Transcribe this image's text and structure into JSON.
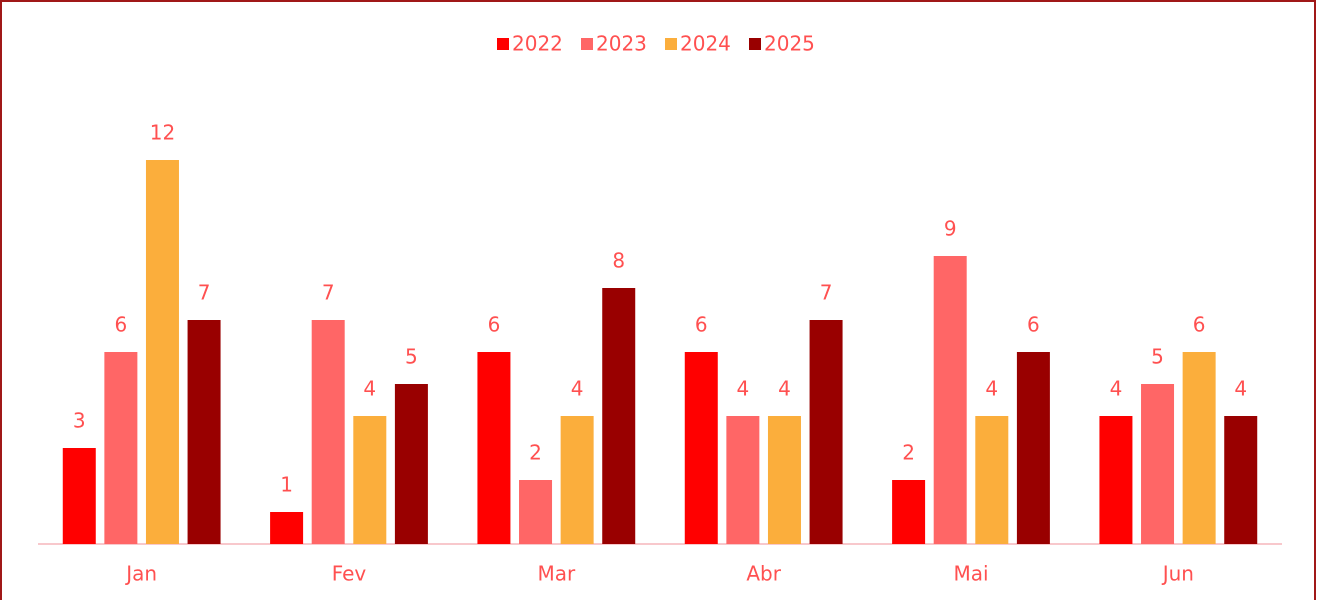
{
  "chart_data": {
    "type": "bar",
    "categories": [
      "Jan",
      "Fev",
      "Mar",
      "Abr",
      "Mai",
      "Jun"
    ],
    "series": [
      {
        "name": "2022",
        "color": "#ff0000",
        "values": [
          3,
          1,
          6,
          6,
          2,
          4
        ]
      },
      {
        "name": "2023",
        "color": "#ff6666",
        "values": [
          6,
          7,
          2,
          4,
          9,
          5
        ]
      },
      {
        "name": "2024",
        "color": "#fbae3c",
        "values": [
          12,
          4,
          4,
          4,
          4,
          6
        ]
      },
      {
        "name": "2025",
        "color": "#990000",
        "values": [
          7,
          5,
          8,
          7,
          6,
          4
        ]
      }
    ],
    "legend": "top"
  }
}
